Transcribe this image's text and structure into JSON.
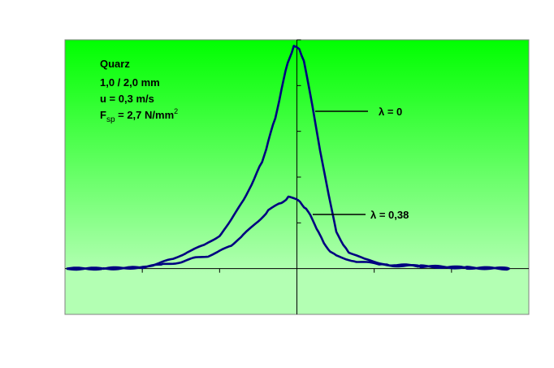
{
  "chart_data": {
    "type": "line",
    "title": "",
    "xlabel": "",
    "ylabel": "",
    "xlim": [
      -3,
      3
    ],
    "ylim": [
      -1,
      5
    ],
    "x_ticks": [
      -2,
      -1,
      0,
      1,
      2
    ],
    "y_ticks": [
      1,
      2,
      3,
      4,
      5
    ],
    "grid": false,
    "annotation_lines": [
      "Quarz",
      "1,0 / 2,0 mm",
      "u = 0,3 m/s"
    ],
    "force_label": {
      "main": "F",
      "sub": "sp",
      "rest": " = 2,7 N/mm",
      "sup": "2"
    },
    "series": [
      {
        "name": "λ = 0",
        "color": "#000080",
        "points": [
          [
            -2.98,
            0.0
          ],
          [
            -2.5,
            0.0
          ],
          [
            -2.0,
            0.03
          ],
          [
            -1.83,
            0.1
          ],
          [
            -1.6,
            0.2
          ],
          [
            -1.42,
            0.37
          ],
          [
            -1.2,
            0.5
          ],
          [
            -1.0,
            0.73
          ],
          [
            -0.85,
            1.05
          ],
          [
            -0.69,
            1.52
          ],
          [
            -0.55,
            1.95
          ],
          [
            -0.45,
            2.35
          ],
          [
            -0.37,
            2.77
          ],
          [
            -0.28,
            3.3
          ],
          [
            -0.2,
            3.9
          ],
          [
            -0.12,
            4.5
          ],
          [
            -0.04,
            4.86
          ],
          [
            0.03,
            4.8
          ],
          [
            0.09,
            4.54
          ],
          [
            0.2,
            3.56
          ],
          [
            0.3,
            2.59
          ],
          [
            0.41,
            1.61
          ],
          [
            0.51,
            0.82
          ],
          [
            0.6,
            0.5
          ],
          [
            0.67,
            0.37
          ],
          [
            0.87,
            0.2
          ],
          [
            1.2,
            0.09
          ],
          [
            1.6,
            0.05
          ],
          [
            2.2,
            0.02
          ],
          [
            2.75,
            0.0
          ]
        ]
      },
      {
        "name": "λ = 0,38",
        "color": "#000080",
        "points": [
          [
            -2.98,
            0.0
          ],
          [
            -2.5,
            0.0
          ],
          [
            -2.0,
            0.02
          ],
          [
            -1.73,
            0.09
          ],
          [
            -1.5,
            0.15
          ],
          [
            -1.31,
            0.23
          ],
          [
            -1.15,
            0.28
          ],
          [
            -1.0,
            0.37
          ],
          [
            -0.85,
            0.52
          ],
          [
            -0.69,
            0.73
          ],
          [
            -0.5,
            1.05
          ],
          [
            -0.37,
            1.26
          ],
          [
            -0.2,
            1.45
          ],
          [
            -0.11,
            1.56
          ],
          [
            0.04,
            1.47
          ],
          [
            0.12,
            1.3
          ],
          [
            0.2,
            1.08
          ],
          [
            0.28,
            0.8
          ],
          [
            0.35,
            0.55
          ],
          [
            0.43,
            0.38
          ],
          [
            0.51,
            0.28
          ],
          [
            0.77,
            0.16
          ],
          [
            1.1,
            0.08
          ],
          [
            1.6,
            0.05
          ],
          [
            2.2,
            0.02
          ],
          [
            2.75,
            0.0
          ]
        ]
      }
    ],
    "legend": [
      {
        "label": "λ = 0",
        "series": 0,
        "placement": "right-of-peak"
      },
      {
        "label": "λ = 0,38",
        "series": 1,
        "placement": "right-of-peak"
      }
    ],
    "background_gradient": {
      "top": "#00ff00",
      "bottom": "#b3ffb3"
    }
  }
}
